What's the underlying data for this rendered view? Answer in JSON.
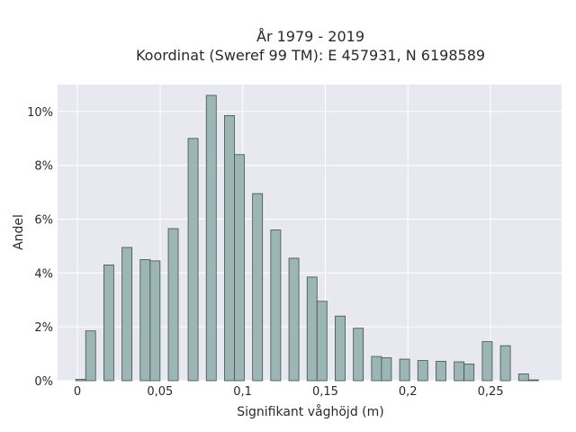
{
  "chart_data": {
    "type": "bar",
    "title_lines": [
      "År 1979 - 2019",
      "Koordinat (Sweref 99 TM): E 457931, N 6198589"
    ],
    "xlabel": "Signifikant våghöjd (m)",
    "ylabel": "Andel",
    "xlim": [
      -0.012,
      0.293
    ],
    "ylim": [
      0,
      11.0
    ],
    "x_ticks": [
      {
        "value": 0,
        "label": "0"
      },
      {
        "value": 0.05,
        "label": "0,05"
      },
      {
        "value": 0.1,
        "label": "0,1"
      },
      {
        "value": 0.15,
        "label": "0,15"
      },
      {
        "value": 0.2,
        "label": "0,2"
      },
      {
        "value": 0.25,
        "label": "0,25"
      }
    ],
    "y_ticks": [
      {
        "value": 0,
        "label": "0%"
      },
      {
        "value": 2,
        "label": "2%"
      },
      {
        "value": 4,
        "label": "4%"
      },
      {
        "value": 6,
        "label": "6%"
      },
      {
        "value": 8,
        "label": "8%"
      },
      {
        "value": 10,
        "label": "10%"
      }
    ],
    "bar_width": 0.006,
    "bar_color": "#9cb5b5",
    "bar_edge_color": "#3f5050",
    "background": "#e8e8f0",
    "grid": true,
    "bars": [
      {
        "x": 0.002,
        "value": 0.05
      },
      {
        "x": 0.008,
        "value": 1.85
      },
      {
        "x": 0.019,
        "value": 4.3
      },
      {
        "x": 0.03,
        "value": 4.95
      },
      {
        "x": 0.041,
        "value": 4.5
      },
      {
        "x": 0.047,
        "value": 4.45
      },
      {
        "x": 0.058,
        "value": 5.65
      },
      {
        "x": 0.07,
        "value": 9.0
      },
      {
        "x": 0.081,
        "value": 10.6
      },
      {
        "x": 0.092,
        "value": 9.85
      },
      {
        "x": 0.098,
        "value": 8.4
      },
      {
        "x": 0.109,
        "value": 6.95
      },
      {
        "x": 0.12,
        "value": 5.6
      },
      {
        "x": 0.131,
        "value": 4.55
      },
      {
        "x": 0.142,
        "value": 3.85
      },
      {
        "x": 0.148,
        "value": 2.95
      },
      {
        "x": 0.159,
        "value": 2.4
      },
      {
        "x": 0.17,
        "value": 1.95
      },
      {
        "x": 0.181,
        "value": 0.9
      },
      {
        "x": 0.187,
        "value": 0.85
      },
      {
        "x": 0.198,
        "value": 0.8
      },
      {
        "x": 0.209,
        "value": 0.75
      },
      {
        "x": 0.22,
        "value": 0.72
      },
      {
        "x": 0.231,
        "value": 0.7
      },
      {
        "x": 0.237,
        "value": 0.62
      },
      {
        "x": 0.248,
        "value": 1.45
      },
      {
        "x": 0.259,
        "value": 1.3
      },
      {
        "x": 0.27,
        "value": 0.25
      },
      {
        "x": 0.276,
        "value": 0.03
      }
    ]
  }
}
